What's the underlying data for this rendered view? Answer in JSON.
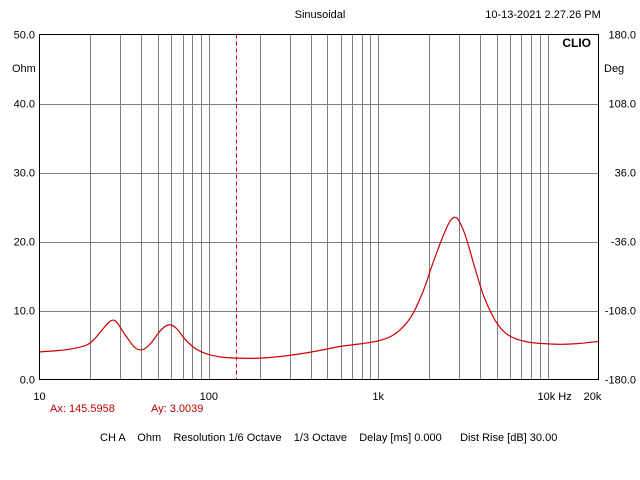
{
  "header": {
    "title": "Sinusoidal",
    "timestamp": "10-13-2021  2.27.26 PM",
    "brand": "CLIO"
  },
  "cursor": {
    "ax_text": "Ax: 145.5958",
    "ay_text": "Ay: 3.0039",
    "x": 145.5958
  },
  "footer": {
    "settings": "CH A    Ohm    Resolution 1/6 Octave    1/3 Octave    Delay [ms] 0.000      Dist Rise [dB] 30.00"
  },
  "colors": {
    "curve": "#cc0000",
    "cursor": "#cc0000",
    "grid": "#808080",
    "text_accent": "#c00000"
  },
  "chart_data": {
    "type": "line",
    "x_scale": "log",
    "xlim": [
      10,
      20000
    ],
    "ylim": [
      0,
      50
    ],
    "y2lim": [
      -180,
      180
    ],
    "left_unit": "Ohm",
    "right_unit": "Deg",
    "x_tick_labels": [
      {
        "value": 10,
        "label": "10"
      },
      {
        "value": 100,
        "label": "100"
      },
      {
        "value": 1000,
        "label": "1k"
      },
      {
        "value": 10000,
        "label": "10k Hz"
      },
      {
        "value": 20000,
        "label": "20k"
      }
    ],
    "y_tick_labels": [
      {
        "value": 50,
        "label": "50.0"
      },
      {
        "value": 40,
        "label": "40.0"
      },
      {
        "value": 30,
        "label": "30.0"
      },
      {
        "value": 20,
        "label": "20.0"
      },
      {
        "value": 10,
        "label": "10.0"
      },
      {
        "value": 0,
        "label": "0.0"
      }
    ],
    "y2_tick_labels": [
      {
        "value": 180,
        "label": "180.0"
      },
      {
        "value": 108,
        "label": "108.0"
      },
      {
        "value": 36,
        "label": "36.0"
      },
      {
        "value": -36,
        "label": "-36.0"
      },
      {
        "value": -108,
        "label": "-108.0"
      },
      {
        "value": -180,
        "label": "-180.0"
      }
    ],
    "grid": true,
    "series": [
      {
        "points": [
          [
            10,
            4.0
          ],
          [
            13,
            4.2
          ],
          [
            16,
            4.5
          ],
          [
            19,
            5.0
          ],
          [
            21,
            5.8
          ],
          [
            24,
            7.5
          ],
          [
            26,
            8.4
          ],
          [
            27.5,
            8.6
          ],
          [
            29,
            8.1
          ],
          [
            32,
            6.5
          ],
          [
            36,
            4.8
          ],
          [
            39,
            4.3
          ],
          [
            42,
            4.5
          ],
          [
            46,
            5.4
          ],
          [
            51,
            6.9
          ],
          [
            56,
            7.8
          ],
          [
            60,
            7.9
          ],
          [
            65,
            7.3
          ],
          [
            72,
            5.9
          ],
          [
            82,
            4.6
          ],
          [
            95,
            3.8
          ],
          [
            115,
            3.3
          ],
          [
            145,
            3.1
          ],
          [
            200,
            3.1
          ],
          [
            300,
            3.5
          ],
          [
            450,
            4.2
          ],
          [
            600,
            4.8
          ],
          [
            800,
            5.2
          ],
          [
            1000,
            5.6
          ],
          [
            1200,
            6.3
          ],
          [
            1400,
            7.6
          ],
          [
            1600,
            9.5
          ],
          [
            1850,
            12.9
          ],
          [
            2100,
            16.8
          ],
          [
            2400,
            20.6
          ],
          [
            2650,
            22.9
          ],
          [
            2820,
            23.5
          ],
          [
            3000,
            23.0
          ],
          [
            3300,
            20.6
          ],
          [
            3700,
            16.4
          ],
          [
            4200,
            12.1
          ],
          [
            4900,
            8.6
          ],
          [
            5600,
            6.8
          ],
          [
            6500,
            5.9
          ],
          [
            7800,
            5.4
          ],
          [
            9500,
            5.2
          ],
          [
            12000,
            5.1
          ],
          [
            15000,
            5.2
          ],
          [
            18000,
            5.4
          ],
          [
            20000,
            5.5
          ]
        ]
      }
    ]
  }
}
